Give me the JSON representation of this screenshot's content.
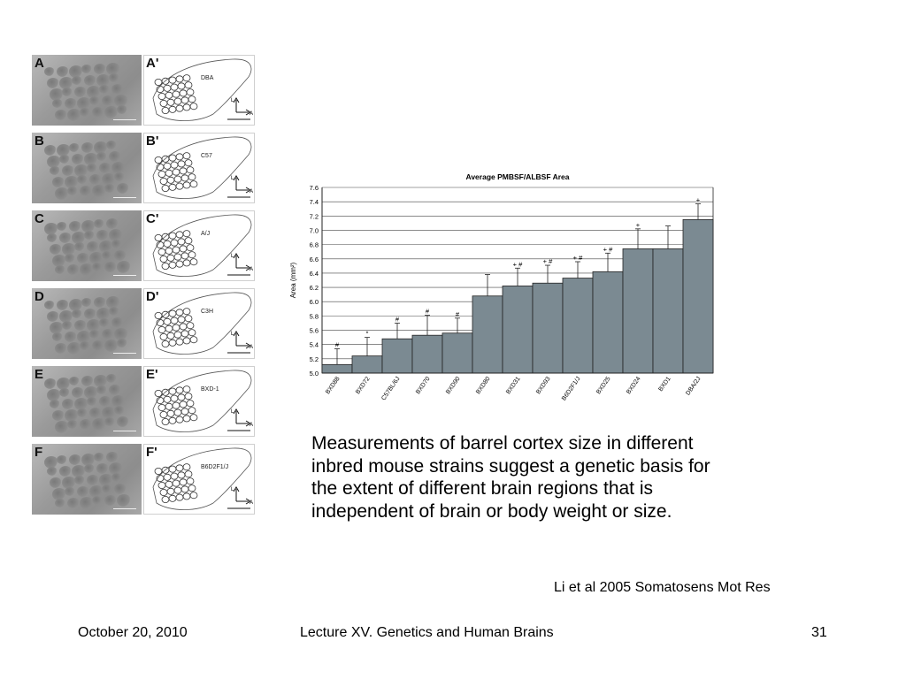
{
  "figure": {
    "panels": [
      {
        "photo_letter": "A",
        "drawing_letter": "A'",
        "strain": "DBA"
      },
      {
        "photo_letter": "B",
        "drawing_letter": "B'",
        "strain": "C57"
      },
      {
        "photo_letter": "C",
        "drawing_letter": "C'",
        "strain": "A/J"
      },
      {
        "photo_letter": "D",
        "drawing_letter": "D'",
        "strain": "C3H"
      },
      {
        "photo_letter": "E",
        "drawing_letter": "E'",
        "strain": "BXD-1"
      },
      {
        "photo_letter": "F",
        "drawing_letter": "F'",
        "strain": "B6D2F1/J"
      }
    ],
    "axis_l": "L",
    "axis_a": "A"
  },
  "chart_data": {
    "type": "bar",
    "title": "Average PMBSF/ALBSF Area",
    "ylabel": "Area (mm²)",
    "xlabel": "",
    "ylim": [
      5.0,
      7.6
    ],
    "yticks": [
      "5.0",
      "5.2",
      "5.4",
      "5.6",
      "5.8",
      "6.0",
      "6.2",
      "6.4",
      "6.6",
      "6.8",
      "7.0",
      "7.2",
      "7.4",
      "7.6"
    ],
    "categories": [
      "BXD88",
      "BXD72",
      "C57BL/6J",
      "BXD70",
      "BXD90",
      "BXD80",
      "BXD31",
      "BXD93",
      "B6D2F1/J",
      "BXD25",
      "BXD24",
      "BXD1",
      "DBA/2J"
    ],
    "values": [
      5.12,
      5.24,
      5.48,
      5.53,
      5.56,
      6.08,
      6.22,
      6.26,
      6.33,
      6.42,
      6.74,
      6.74,
      7.15
    ],
    "errors": [
      0.22,
      0.26,
      0.22,
      0.28,
      0.21,
      0.3,
      0.25,
      0.25,
      0.23,
      0.26,
      0.28,
      0.32,
      0.22
    ],
    "annotations": [
      "#",
      "*",
      "#",
      "#",
      "#",
      "",
      "+ #",
      "+ #",
      "+ #",
      "+ #",
      "+",
      "",
      "+"
    ],
    "bar_color": "#7b8a92",
    "grid": true
  },
  "caption": {
    "lines": [
      "Measurements of barrel cortex size in different",
      "inbred mouse strains suggest a genetic basis for",
      "the extent  of different brain regions that is",
      "independent of brain or body weight or size."
    ]
  },
  "citation": "Li et al 2005 Somatosens Mot Res",
  "footer": {
    "date": "October 20, 2010",
    "title": "Lecture XV. Genetics and Human Brains",
    "page": "31"
  }
}
